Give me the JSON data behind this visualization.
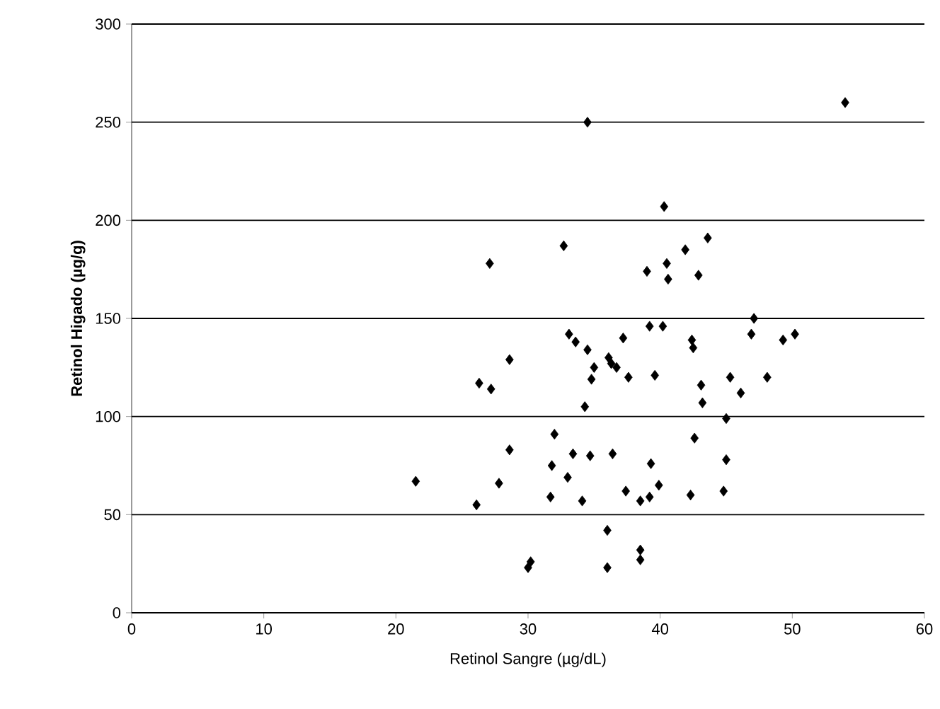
{
  "chart_data": {
    "type": "scatter",
    "xlabel": "Retinol Sangre (µg/dL)",
    "ylabel": "Retinol Higado (µg/g)",
    "marker": "diamond",
    "grid": "y",
    "xlim": [
      0,
      60
    ],
    "ylim": [
      0,
      300
    ],
    "xticks": [
      0,
      10,
      20,
      30,
      40,
      50,
      60
    ],
    "yticks": [
      0,
      50,
      100,
      150,
      200,
      250,
      300
    ],
    "series": [
      {
        "color": "#000000",
        "x": [
          32.7,
          27.1,
          33.1,
          33.6,
          34.5,
          36.1,
          36.3,
          28.6,
          35.0,
          34.8,
          26.3,
          27.2,
          34.3,
          32.0,
          28.6,
          33.4,
          34.7,
          36.4,
          31.8,
          33.0,
          21.5,
          27.8,
          31.7,
          34.1,
          26.1,
          36.0,
          30.2,
          30.0,
          36.0,
          34.5,
          43.6,
          41.9,
          39.0,
          40.5,
          40.6,
          42.9,
          40.3,
          54.0,
          47.1,
          46.9,
          39.2,
          40.2,
          37.2,
          42.4,
          42.5,
          49.3,
          50.2,
          36.7,
          37.6,
          39.6,
          43.1,
          45.3,
          46.1,
          48.1,
          43.2,
          45.0,
          42.6,
          39.3,
          45.0,
          37.4,
          38.5,
          39.2,
          39.9,
          42.3,
          44.8,
          38.5,
          38.5
        ],
        "values": [
          187,
          178,
          142,
          138,
          134,
          130,
          127,
          129,
          125,
          119,
          117,
          114,
          105,
          91,
          83,
          81,
          80,
          81,
          75,
          69,
          67,
          66,
          59,
          57,
          55,
          42,
          26,
          23,
          23,
          250,
          191,
          185,
          174,
          178,
          170,
          172,
          207,
          260,
          150,
          142,
          146,
          146,
          140,
          139,
          135,
          139,
          142,
          125,
          120,
          121,
          116,
          120,
          112,
          120,
          107,
          99,
          89,
          76,
          78,
          62,
          57,
          59,
          65,
          60,
          62,
          32,
          27
        ]
      }
    ]
  }
}
